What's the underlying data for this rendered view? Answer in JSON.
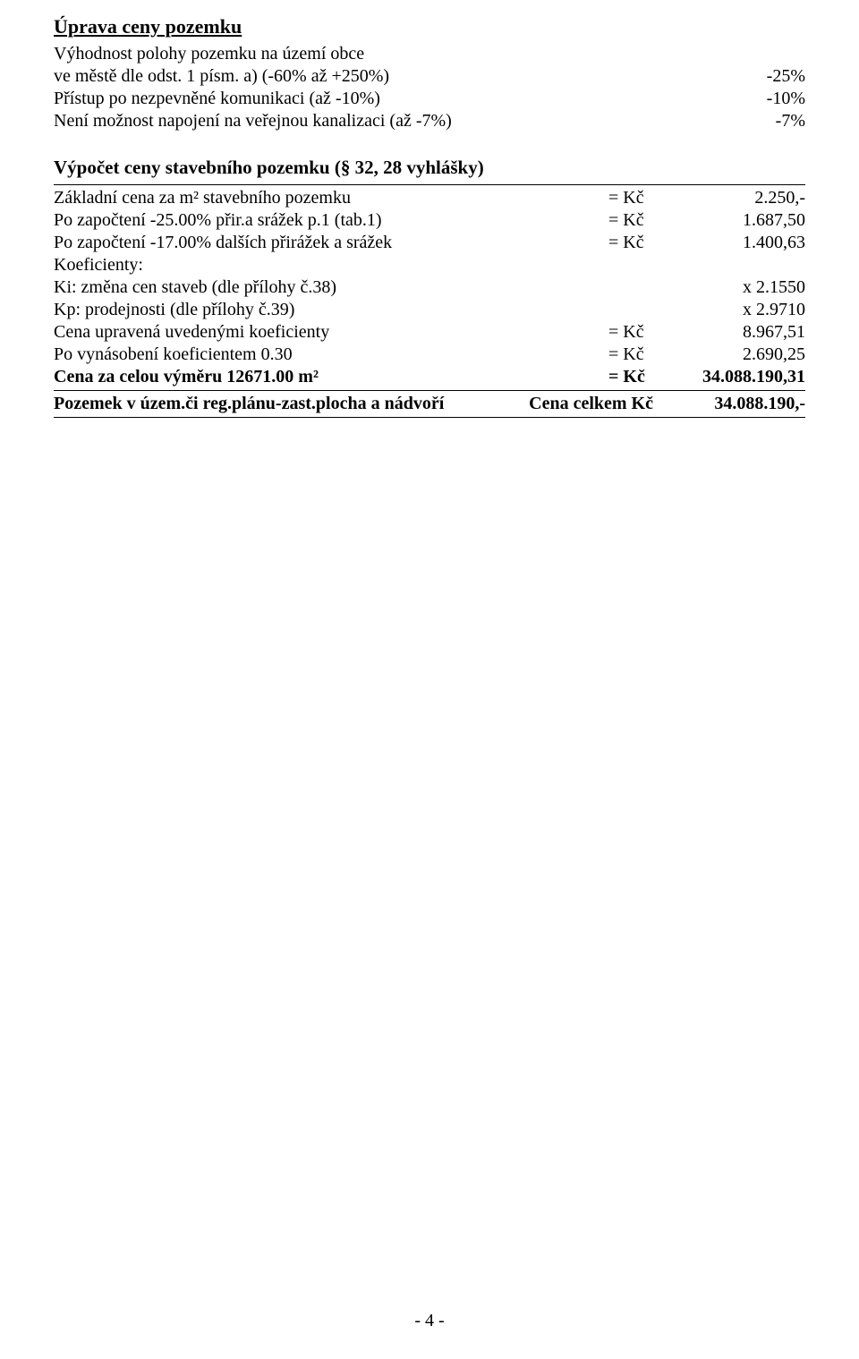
{
  "title": "Úprava ceny pozemku",
  "adjustments": {
    "line1": "Výhodnost polohy pozemku na území obce",
    "line2": "ve městě dle odst. 1 písm. a) (-60% až +250%)",
    "val2": "-25%",
    "line3": "Přístup po nezpevněné komunikaci (až -10%)",
    "val3": "-10%",
    "line4": "Není možnost napojení na veřejnou kanalizaci (až -7%)",
    "val4": "-7%"
  },
  "calc_title": "Výpočet ceny stavebního pozemku (§ 32, 28 vyhlášky)",
  "kc": "= Kč",
  "rows": {
    "r1": {
      "label": "Základní cena za m² stavebního pozemku",
      "val": "2.250,-"
    },
    "r2": {
      "label": "Po započtení -25.00% přir.a srážek p.1 (tab.1)",
      "val": "1.687,50"
    },
    "r3": {
      "label": "Po započtení -17.00% dalších přirážek a srážek",
      "val": "1.400,63"
    },
    "r4": {
      "label": "Koeficienty:"
    },
    "r5": {
      "label": "Ki: změna cen staveb (dle přílohy č.38)",
      "val": "x 2.1550"
    },
    "r6": {
      "label": "Kp: prodejnosti (dle přílohy č.39)",
      "val": "x 2.9710"
    },
    "r7": {
      "label": "Cena upravená uvedenými koeficienty",
      "val": "8.967,51"
    },
    "r8": {
      "label": "Po vynásobení koeficientem 0.30",
      "val": "2.690,25"
    },
    "r9": {
      "label": "Cena za celou výměru 12671.00 m²",
      "val": "34.088.190,31"
    }
  },
  "summary": {
    "label": "Pozemek v územ.či reg.plánu-zast.plocha a nádvoří",
    "mid": "Cena celkem Kč",
    "val": "34.088.190,-"
  },
  "page_number": "- 4 -"
}
